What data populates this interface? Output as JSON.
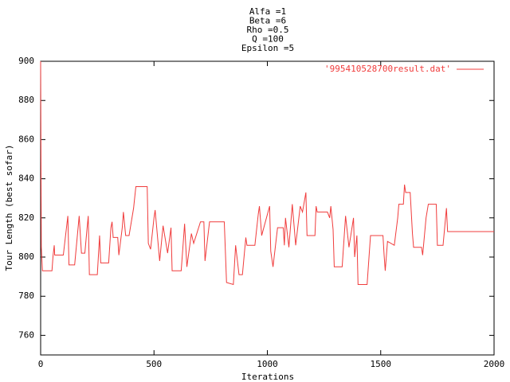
{
  "chart_data": {
    "type": "line",
    "title": [
      "Alfa =1",
      "Beta =6",
      "Rho =0.5",
      "Q =100",
      "Epsilon =5"
    ],
    "x_label": "Iterations",
    "y_label": "Tour Length (best sofar)",
    "xlim": [
      0,
      2000
    ],
    "xticks": [
      0,
      500,
      1000,
      1500,
      2000
    ],
    "ylim": [
      750,
      900
    ],
    "yticks": [
      760,
      780,
      800,
      820,
      840,
      860,
      880,
      900
    ],
    "legend": "top-right",
    "grid": false,
    "x": [
      0,
      3,
      8,
      50,
      55,
      60,
      62,
      100,
      120,
      125,
      150,
      170,
      180,
      195,
      205,
      210,
      215,
      250,
      260,
      265,
      300,
      310,
      315,
      320,
      340,
      345,
      360,
      365,
      375,
      390,
      410,
      420,
      470,
      475,
      485,
      500,
      505,
      525,
      540,
      560,
      575,
      580,
      620,
      635,
      645,
      665,
      675,
      705,
      720,
      725,
      745,
      810,
      820,
      850,
      860,
      875,
      890,
      905,
      910,
      945,
      960,
      965,
      975,
      1010,
      1015,
      1025,
      1045,
      1070,
      1075,
      1080,
      1095,
      1110,
      1125,
      1145,
      1155,
      1170,
      1175,
      1210,
      1215,
      1220,
      1265,
      1275,
      1280,
      1290,
      1295,
      1330,
      1345,
      1360,
      1380,
      1385,
      1395,
      1400,
      1440,
      1455,
      1510,
      1515,
      1520,
      1530,
      1560,
      1575,
      1580,
      1600,
      1605,
      1610,
      1630,
      1640,
      1645,
      1680,
      1685,
      1700,
      1710,
      1745,
      1750,
      1775,
      1790,
      1795,
      2000
    ],
    "series": [
      {
        "name": "'995410528700result.dat'",
        "color": "#f03c3c",
        "values": [
          900,
          805,
          793,
          793,
          801,
          806,
          801,
          801,
          821,
          796,
          796,
          821,
          802,
          802,
          815,
          821,
          791,
          791,
          811,
          797,
          797,
          815,
          818,
          810,
          810,
          801,
          815,
          823,
          811,
          811,
          825,
          836,
          836,
          807,
          804,
          820,
          824,
          798,
          816,
          802,
          815,
          793,
          793,
          817,
          795,
          812,
          807,
          818,
          818,
          798,
          818,
          818,
          787,
          786,
          806,
          791,
          791,
          810,
          806,
          806,
          822,
          826,
          811,
          826,
          803,
          795,
          815,
          815,
          806,
          820,
          805,
          827,
          806,
          826,
          823,
          833,
          811,
          811,
          826,
          823,
          823,
          820,
          826,
          814,
          795,
          795,
          821,
          805,
          820,
          800,
          811,
          786,
          786,
          811,
          811,
          801,
          793,
          808,
          806,
          820,
          827,
          827,
          837,
          833,
          833,
          812,
          805,
          805,
          801,
          820,
          827,
          827,
          806,
          806,
          825,
          813,
          813
        ]
      }
    ]
  }
}
